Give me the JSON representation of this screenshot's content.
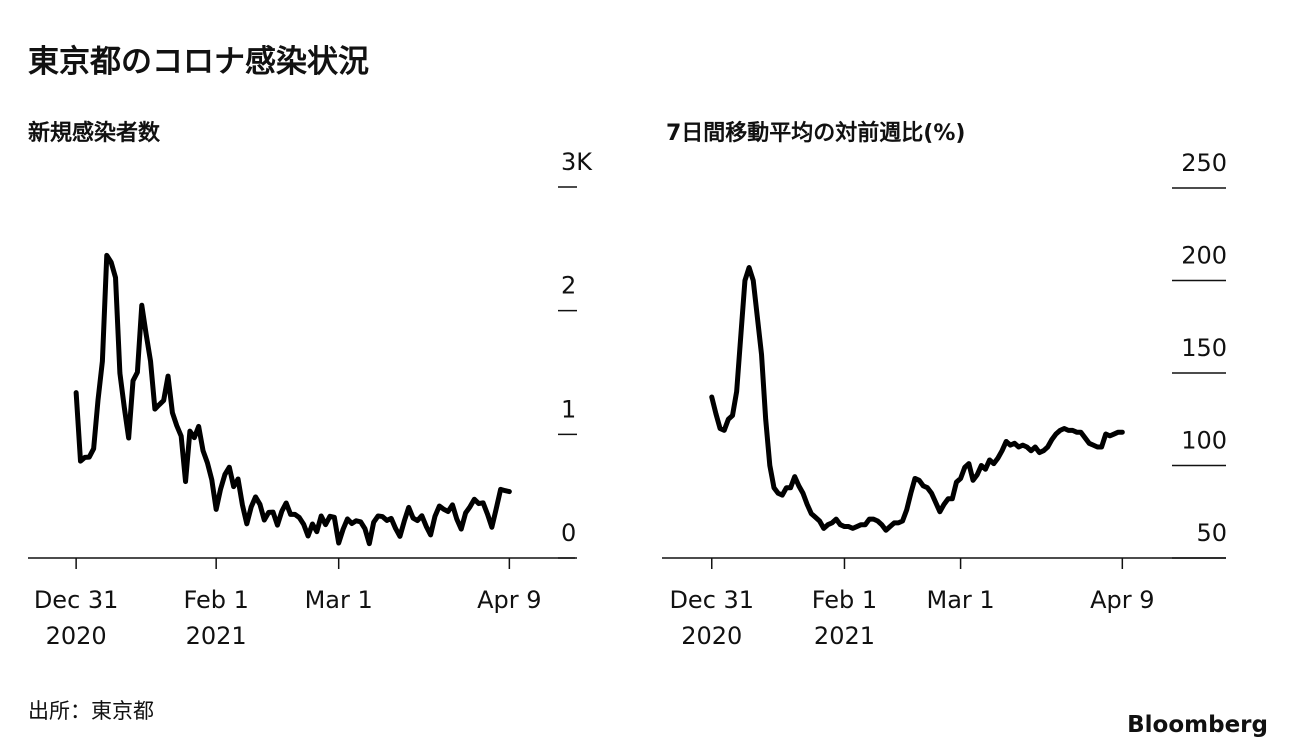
{
  "title": "東京都のコロナ感染状況",
  "source": "出所：東京都",
  "logo": "Bloomberg",
  "chart_data": [
    {
      "type": "line",
      "subtitle": "新規感染者数",
      "color": "#000000",
      "x": [
        "2020-12-31",
        "2021-01-01",
        "2021-01-02",
        "2021-01-03",
        "2021-01-04",
        "2021-01-05",
        "2021-01-06",
        "2021-01-07",
        "2021-01-08",
        "2021-01-09",
        "2021-01-10",
        "2021-01-11",
        "2021-01-12",
        "2021-01-13",
        "2021-01-14",
        "2021-01-15",
        "2021-01-16",
        "2021-01-17",
        "2021-01-18",
        "2021-01-19",
        "2021-01-20",
        "2021-01-21",
        "2021-01-22",
        "2021-01-23",
        "2021-01-24",
        "2021-01-25",
        "2021-01-26",
        "2021-01-27",
        "2021-01-28",
        "2021-01-29",
        "2021-01-30",
        "2021-01-31",
        "2021-02-01",
        "2021-02-02",
        "2021-02-03",
        "2021-02-04",
        "2021-02-05",
        "2021-02-06",
        "2021-02-07",
        "2021-02-08",
        "2021-02-09",
        "2021-02-10",
        "2021-02-11",
        "2021-02-12",
        "2021-02-13",
        "2021-02-14",
        "2021-02-15",
        "2021-02-16",
        "2021-02-17",
        "2021-02-18",
        "2021-02-19",
        "2021-02-20",
        "2021-02-21",
        "2021-02-22",
        "2021-02-23",
        "2021-02-24",
        "2021-02-25",
        "2021-02-26",
        "2021-02-27",
        "2021-02-28",
        "2021-03-01",
        "2021-03-02",
        "2021-03-03",
        "2021-03-04",
        "2021-03-05",
        "2021-03-06",
        "2021-03-07",
        "2021-03-08",
        "2021-03-09",
        "2021-03-10",
        "2021-03-11",
        "2021-03-12",
        "2021-03-13",
        "2021-03-14",
        "2021-03-15",
        "2021-03-16",
        "2021-03-17",
        "2021-03-18",
        "2021-03-19",
        "2021-03-20",
        "2021-03-21",
        "2021-03-22",
        "2021-03-23",
        "2021-03-24",
        "2021-03-25",
        "2021-03-26",
        "2021-03-27",
        "2021-03-28",
        "2021-03-29",
        "2021-03-30",
        "2021-03-31",
        "2021-04-01",
        "2021-04-02",
        "2021-04-03",
        "2021-04-04",
        "2021-04-05",
        "2021-04-06",
        "2021-04-07",
        "2021-04-08",
        "2021-04-09"
      ],
      "values": [
        1337,
        783,
        814,
        816,
        884,
        1278,
        1591,
        2447,
        2392,
        2268,
        1494,
        1219,
        970,
        1433,
        1502,
        2044,
        1809,
        1592,
        1204,
        1240,
        1274,
        1471,
        1175,
        1070,
        986,
        618,
        1026,
        973,
        1064,
        868,
        769,
        633,
        393,
        556,
        676,
        734,
        577,
        639,
        429,
        276,
        412,
        494,
        434,
        307,
        369,
        371,
        266,
        378,
        445,
        353,
        353,
        327,
        272,
        178,
        275,
        213,
        340,
        270,
        337,
        329,
        121,
        232,
        316,
        279,
        301,
        293,
        237,
        116,
        290,
        340,
        335,
        304,
        320,
        239,
        175,
        300,
        409,
        323,
        303,
        342,
        256,
        187,
        337,
        420,
        394,
        376,
        430,
        313,
        234,
        364,
        414,
        475,
        440,
        446,
        355,
        249,
        399,
        555,
        545,
        537
      ],
      "xlim": [
        "2020-12-20",
        "2021-04-24"
      ],
      "xticks": [
        {
          "value": "2020-12-31",
          "label": [
            "Dec 31",
            "2020"
          ]
        },
        {
          "value": "2021-02-01",
          "label": [
            "Feb 1",
            "2021"
          ]
        },
        {
          "value": "2021-03-01",
          "label": [
            "Mar 1"
          ]
        },
        {
          "value": "2021-04-09",
          "label": [
            "Apr 9"
          ]
        }
      ],
      "ylim": [
        0,
        3000
      ],
      "yticks": [
        0,
        {
          "value": 1000,
          "label": "1"
        },
        {
          "value": 2000,
          "label": "2"
        },
        {
          "value": 3000,
          "label": "3K"
        }
      ]
    },
    {
      "type": "line",
      "subtitle": "7日間移動平均の対前週比(%)",
      "color": "#000000",
      "x": [
        "2020-12-31",
        "2021-01-01",
        "2021-01-02",
        "2021-01-03",
        "2021-01-04",
        "2021-01-05",
        "2021-01-06",
        "2021-01-07",
        "2021-01-08",
        "2021-01-09",
        "2021-01-10",
        "2021-01-11",
        "2021-01-12",
        "2021-01-13",
        "2021-01-14",
        "2021-01-15",
        "2021-01-16",
        "2021-01-17",
        "2021-01-18",
        "2021-01-19",
        "2021-01-20",
        "2021-01-21",
        "2021-01-22",
        "2021-01-23",
        "2021-01-24",
        "2021-01-25",
        "2021-01-26",
        "2021-01-27",
        "2021-01-28",
        "2021-01-29",
        "2021-01-30",
        "2021-01-31",
        "2021-02-01",
        "2021-02-02",
        "2021-02-03",
        "2021-02-04",
        "2021-02-05",
        "2021-02-06",
        "2021-02-07",
        "2021-02-08",
        "2021-02-09",
        "2021-02-10",
        "2021-02-11",
        "2021-02-12",
        "2021-02-13",
        "2021-02-14",
        "2021-02-15",
        "2021-02-16",
        "2021-02-17",
        "2021-02-18",
        "2021-02-19",
        "2021-02-20",
        "2021-02-21",
        "2021-02-22",
        "2021-02-23",
        "2021-02-24",
        "2021-02-25",
        "2021-02-26",
        "2021-02-27",
        "2021-02-28",
        "2021-03-01",
        "2021-03-02",
        "2021-03-03",
        "2021-03-04",
        "2021-03-05",
        "2021-03-06",
        "2021-03-07",
        "2021-03-08",
        "2021-03-09",
        "2021-03-10",
        "2021-03-11",
        "2021-03-12",
        "2021-03-13",
        "2021-03-14",
        "2021-03-15",
        "2021-03-16",
        "2021-03-17",
        "2021-03-18",
        "2021-03-19",
        "2021-03-20",
        "2021-03-21",
        "2021-03-22",
        "2021-03-23",
        "2021-03-24",
        "2021-03-25",
        "2021-03-26",
        "2021-03-27",
        "2021-03-28",
        "2021-03-29",
        "2021-03-30",
        "2021-03-31",
        "2021-04-01",
        "2021-04-02",
        "2021-04-03",
        "2021-04-04",
        "2021-04-05",
        "2021-04-06",
        "2021-04-07",
        "2021-04-08",
        "2021-04-09"
      ],
      "values": [
        137,
        128,
        120,
        119,
        125,
        127,
        140,
        170,
        200,
        207,
        200,
        180,
        160,
        125,
        100,
        88,
        85,
        84,
        88,
        88,
        94,
        89,
        85,
        79,
        74,
        72,
        70,
        66,
        68,
        69,
        71,
        68,
        67,
        67,
        66,
        67,
        68,
        68,
        71,
        71,
        70,
        68,
        65,
        67,
        69,
        69,
        70,
        76,
        85,
        93,
        92,
        89,
        88,
        85,
        80,
        75,
        79,
        82,
        82,
        91,
        93,
        99,
        101,
        92,
        95,
        100,
        98,
        103,
        101,
        104,
        108,
        113,
        111,
        112,
        110,
        111,
        110,
        108,
        110,
        107,
        108,
        110,
        114,
        117,
        119,
        120,
        119,
        119,
        118,
        118,
        115,
        112,
        111,
        110,
        110,
        117,
        116,
        117,
        118,
        118
      ],
      "xlim": [
        "2020-12-19",
        "2021-05-04"
      ],
      "xticks": [
        {
          "value": "2020-12-31",
          "label": [
            "Dec 31",
            "2020"
          ]
        },
        {
          "value": "2021-02-01",
          "label": [
            "Feb 1",
            "2021"
          ]
        },
        {
          "value": "2021-03-01",
          "label": [
            "Mar 1"
          ]
        },
        {
          "value": "2021-04-09",
          "label": [
            "Apr 9"
          ]
        }
      ],
      "ylim": [
        50,
        250
      ],
      "yticks": [
        50,
        100,
        150,
        200,
        250
      ]
    }
  ]
}
